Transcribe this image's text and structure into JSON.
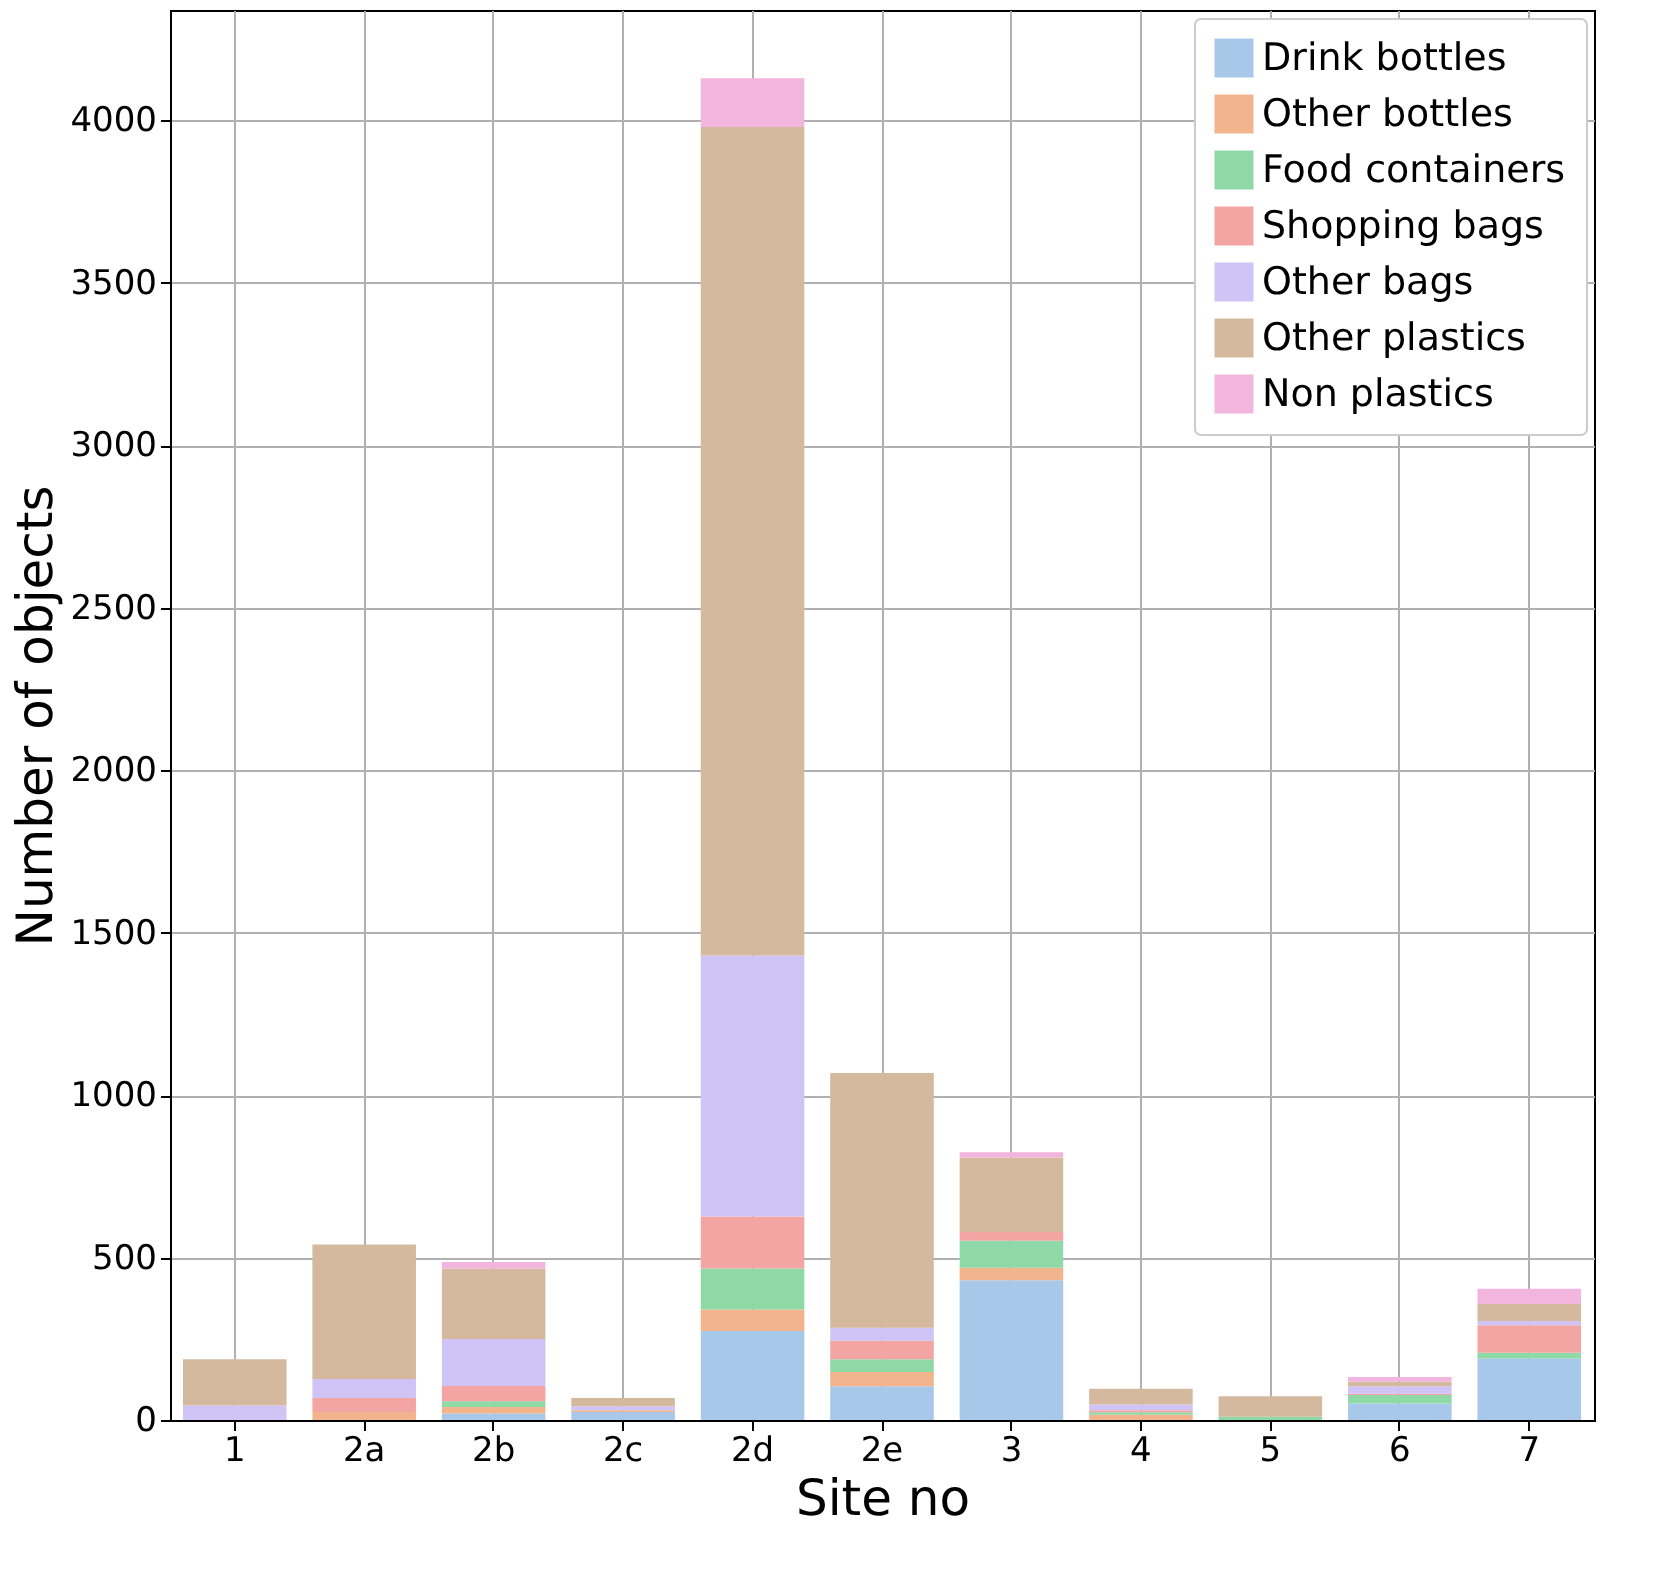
{
  "chart_data": {
    "type": "bar",
    "stacked": true,
    "xlabel": "Site no",
    "ylabel": "Number of objects",
    "categories": [
      "1",
      "2a",
      "2b",
      "2c",
      "2d",
      "2e",
      "3",
      "4",
      "5",
      "6",
      "7"
    ],
    "series": [
      {
        "name": "Drink bottles",
        "color": "#a8c8ea",
        "values": [
          null,
          null,
          20,
          25,
          274,
          104,
          430,
          null,
          null,
          51,
          189
        ]
      },
      {
        "name": "Other bottles",
        "color": "#f2b48c",
        "values": [
          0,
          25,
          20,
          5,
          66,
          44,
          39,
          16,
          0,
          0,
          0
        ]
      },
      {
        "name": "Food containers",
        "color": "#8fd9a6",
        "values": [
          0,
          0,
          18,
          0,
          126,
          39,
          83,
          8,
          10,
          26,
          18
        ]
      },
      {
        "name": "Shopping bags",
        "color": "#f2a5a3",
        "values": [
          0,
          43,
          47,
          0,
          160,
          57,
          27,
          6,
          0,
          4,
          85
        ]
      },
      {
        "name": "Other bags",
        "color": "#d0c3f5",
        "values": [
          45,
          58,
          144,
          12,
          804,
          40,
          0,
          18,
          0,
          23,
          13
        ]
      },
      {
        "name": "Other plastics",
        "color": "#d5b99e",
        "values": [
          142,
          414,
          217,
          26,
          2550,
          784,
          229,
          48,
          63,
          14,
          52
        ]
      },
      {
        "name": "Non plastics",
        "color": "#f2b5dd",
        "values": [
          0,
          0,
          20,
          0,
          150,
          null,
          16,
          0,
          0,
          14,
          47
        ]
      }
    ],
    "ylim": [
      0,
      4340
    ],
    "yticks": [
      0,
      500,
      1000,
      1500,
      2000,
      2500,
      3000,
      3500,
      4000
    ],
    "grid": true,
    "legend": "top right"
  }
}
